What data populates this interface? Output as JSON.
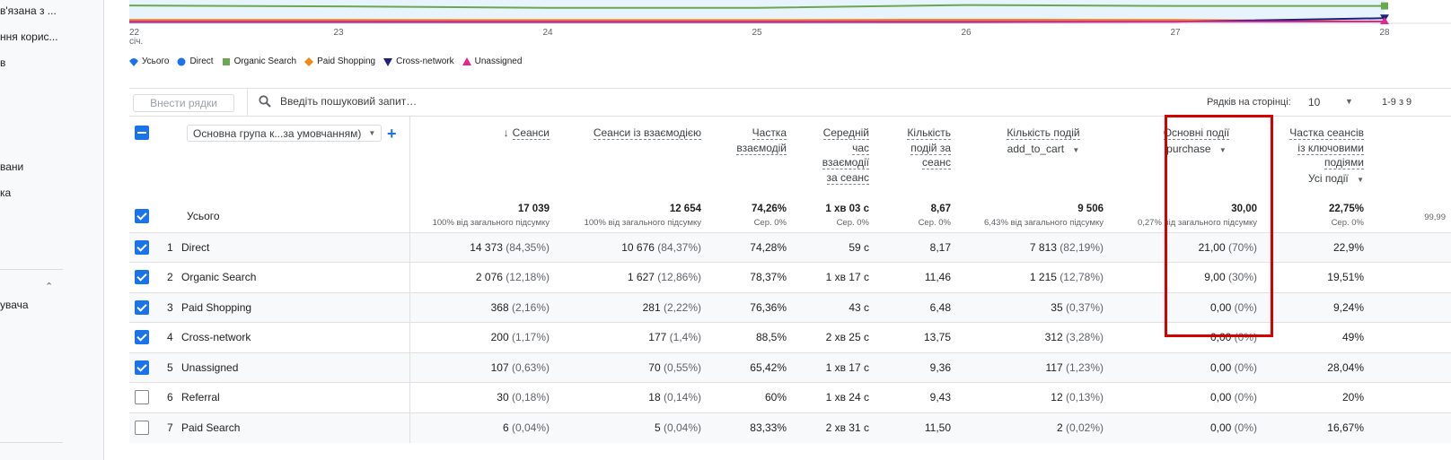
{
  "sidebar": {
    "items": [
      {
        "label": "в'язана з ..."
      },
      {
        "label": "ння корис..."
      },
      {
        "label": "в"
      },
      {
        "label": "вани"
      },
      {
        "label": "ка"
      },
      {
        "label": "увача"
      }
    ]
  },
  "chart_data": {
    "type": "line",
    "x": [
      "22",
      "23",
      "24",
      "25",
      "26",
      "27",
      "28"
    ],
    "x_sublabel": "січ.",
    "series": [
      {
        "name": "Усього",
        "color": "#1a73e8",
        "values": [
          null,
          null,
          null,
          null,
          null,
          null,
          null
        ]
      },
      {
        "name": "Direct",
        "color": "#1a73e8",
        "values": [
          null,
          null,
          null,
          null,
          null,
          null,
          null
        ]
      },
      {
        "name": "Organic Search",
        "color": "#6aa84f",
        "values": [
          360,
          340,
          310,
          310,
          370,
          350,
          350
        ]
      },
      {
        "name": "Paid Shopping",
        "color": "#ef8a17",
        "values": [
          55,
          55,
          52,
          52,
          58,
          55,
          20
        ]
      },
      {
        "name": "Cross-network",
        "color": "#1a237e",
        "values": [
          10,
          10,
          10,
          10,
          10,
          15,
          90
        ]
      },
      {
        "name": "Unassigned",
        "color": "#e52592",
        "values": [
          20,
          20,
          20,
          20,
          20,
          18,
          20
        ]
      }
    ],
    "legend_position": "bottom-left"
  },
  "legend": [
    {
      "name": "Усього",
      "color": "#1a73e8",
      "shape": "teardrop"
    },
    {
      "name": "Direct",
      "color": "#1a73e8",
      "shape": "circle"
    },
    {
      "name": "Organic Search",
      "color": "#6aa84f",
      "shape": "square"
    },
    {
      "name": "Paid Shopping",
      "color": "#ef8a17",
      "shape": "diamond"
    },
    {
      "name": "Cross-network",
      "color": "#1a237e",
      "shape": "triangle-down"
    },
    {
      "name": "Unassigned",
      "color": "#e52592",
      "shape": "triangle-up"
    }
  ],
  "toolbar": {
    "add_rows": "Внести рядки",
    "search_placeholder": "Введіть пошуковий запит…",
    "rows_per_page_label": "Рядків на сторінці:",
    "rows_per_page_value": "10",
    "pagination": "1-9 з 9"
  },
  "table": {
    "dimension_select": "Основна група к...за умовчанням)",
    "total_label": "Усього",
    "columns": [
      {
        "label_lines": [
          "Сеанси"
        ],
        "sort": "↓",
        "total": "17 039",
        "total_sub": "100% від загального підсумку"
      },
      {
        "label_lines": [
          "Сеанси із взаємодією"
        ],
        "total": "12 654",
        "total_sub": "100% від загального підсумку"
      },
      {
        "label_lines": [
          "Частка",
          "взаємодій"
        ],
        "total": "74,26%",
        "total_sub": "Сер. 0%"
      },
      {
        "label_lines": [
          "Середній",
          "час",
          "взаємодії",
          "за сеанс"
        ],
        "total": "1 хв 03 с",
        "total_sub": "Сер. 0%"
      },
      {
        "label_lines": [
          "Кількість",
          "подій за",
          "сеанс"
        ],
        "total": "8,67",
        "total_sub": "Сер. 0%"
      },
      {
        "label_lines": [
          "Кількість подій"
        ],
        "filter": "add_to_cart",
        "total": "9 506",
        "total_sub": "6,43% від загального підсумку"
      },
      {
        "label_lines": [
          "Основні події"
        ],
        "filter": "purchase",
        "total": "30,00",
        "total_sub": "0,27% від загального підсумку"
      },
      {
        "label_lines": [
          "Частка сеансів",
          "із ключовими",
          "подіями"
        ],
        "filter": "Усі події",
        "total": "22,75%",
        "total_sub": "Сер. 0%"
      },
      {
        "label_lines": [],
        "total": "",
        "total_sub": "99,99"
      }
    ],
    "rows": [
      {
        "idx": "1",
        "name": "Direct",
        "checked": true,
        "cells": [
          [
            "14 373",
            "(84,35%)"
          ],
          [
            "10 676",
            "(84,37%)"
          ],
          [
            "74,28%",
            ""
          ],
          [
            "59 с",
            ""
          ],
          [
            "8,17",
            ""
          ],
          [
            "7 813",
            "(82,19%)"
          ],
          [
            "21,00",
            "(70%)"
          ],
          [
            "22,9%",
            ""
          ]
        ]
      },
      {
        "idx": "2",
        "name": "Organic Search",
        "checked": true,
        "cells": [
          [
            "2 076",
            "(12,18%)"
          ],
          [
            "1 627",
            "(12,86%)"
          ],
          [
            "78,37%",
            ""
          ],
          [
            "1 хв 17 с",
            ""
          ],
          [
            "11,46",
            ""
          ],
          [
            "1 215",
            "(12,78%)"
          ],
          [
            "9,00",
            "(30%)"
          ],
          [
            "19,51%",
            ""
          ]
        ]
      },
      {
        "idx": "3",
        "name": "Paid Shopping",
        "checked": true,
        "cells": [
          [
            "368",
            "(2,16%)"
          ],
          [
            "281",
            "(2,22%)"
          ],
          [
            "76,36%",
            ""
          ],
          [
            "43 с",
            ""
          ],
          [
            "6,48",
            ""
          ],
          [
            "35",
            "(0,37%)"
          ],
          [
            "0,00",
            "(0%)"
          ],
          [
            "9,24%",
            ""
          ]
        ]
      },
      {
        "idx": "4",
        "name": "Cross-network",
        "checked": true,
        "cells": [
          [
            "200",
            "(1,17%)"
          ],
          [
            "177",
            "(1,4%)"
          ],
          [
            "88,5%",
            ""
          ],
          [
            "2 хв 25 с",
            ""
          ],
          [
            "13,75",
            ""
          ],
          [
            "312",
            "(3,28%)"
          ],
          [
            "0,00",
            "(0%)"
          ],
          [
            "49%",
            ""
          ]
        ]
      },
      {
        "idx": "5",
        "name": "Unassigned",
        "checked": true,
        "cells": [
          [
            "107",
            "(0,63%)"
          ],
          [
            "70",
            "(0,55%)"
          ],
          [
            "65,42%",
            ""
          ],
          [
            "1 хв 17 с",
            ""
          ],
          [
            "9,36",
            ""
          ],
          [
            "117",
            "(1,23%)"
          ],
          [
            "0,00",
            "(0%)"
          ],
          [
            "28,04%",
            ""
          ]
        ]
      },
      {
        "idx": "6",
        "name": "Referral",
        "checked": false,
        "cells": [
          [
            "30",
            "(0,18%)"
          ],
          [
            "18",
            "(0,14%)"
          ],
          [
            "60%",
            ""
          ],
          [
            "1 хв 24 с",
            ""
          ],
          [
            "9,43",
            ""
          ],
          [
            "12",
            "(0,13%)"
          ],
          [
            "0,00",
            "(0%)"
          ],
          [
            "20%",
            ""
          ]
        ]
      },
      {
        "idx": "7",
        "name": "Paid Search",
        "checked": false,
        "cells": [
          [
            "6",
            "(0,04%)"
          ],
          [
            "5",
            "(0,04%)"
          ],
          [
            "83,33%",
            ""
          ],
          [
            "2 хв 31 с",
            ""
          ],
          [
            "11,50",
            ""
          ],
          [
            "2",
            "(0,02%)"
          ],
          [
            "0,00",
            "(0%)"
          ],
          [
            "16,67%",
            ""
          ]
        ]
      }
    ]
  }
}
